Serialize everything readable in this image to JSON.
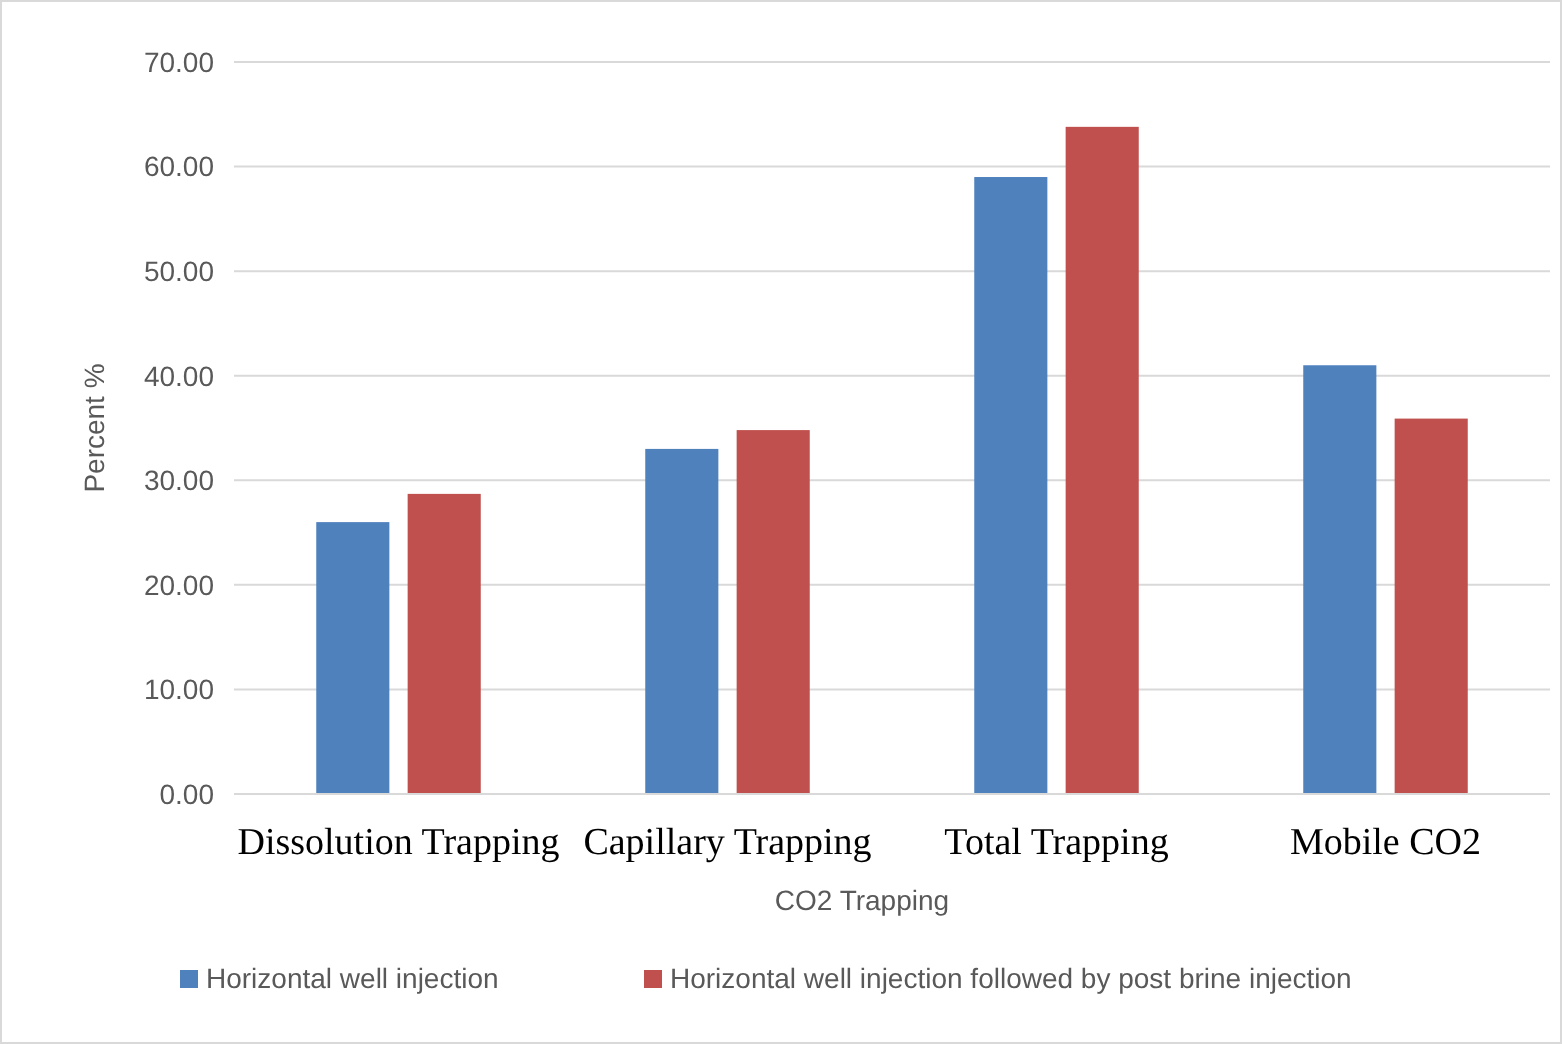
{
  "chart_data": {
    "type": "bar",
    "xlabel": "CO2 Trapping",
    "ylabel": "Percent %",
    "categories": [
      "Dissolution Trapping",
      "Capillary Trapping",
      "Total Trapping",
      "Mobile CO2"
    ],
    "series": [
      {
        "name": "Horizontal well injection",
        "color": "#4f81bd",
        "values": [
          26,
          33,
          59,
          41
        ]
      },
      {
        "name": "Horizontal well injection followed by post brine injection",
        "color": "#c0504d",
        "values": [
          28.7,
          34.8,
          63.8,
          35.9
        ]
      }
    ],
    "ylim": [
      0,
      70
    ],
    "yticks": [
      {
        "value": 0,
        "label": "0.00"
      },
      {
        "value": 10,
        "label": "10.00"
      },
      {
        "value": 20,
        "label": "20.00"
      },
      {
        "value": 30,
        "label": "30.00"
      },
      {
        "value": 40,
        "label": "40.00"
      },
      {
        "value": 50,
        "label": "50.00"
      },
      {
        "value": 60,
        "label": "60.00"
      },
      {
        "value": 70,
        "label": "70.00"
      }
    ],
    "grid": "y",
    "legend": "bottom"
  }
}
